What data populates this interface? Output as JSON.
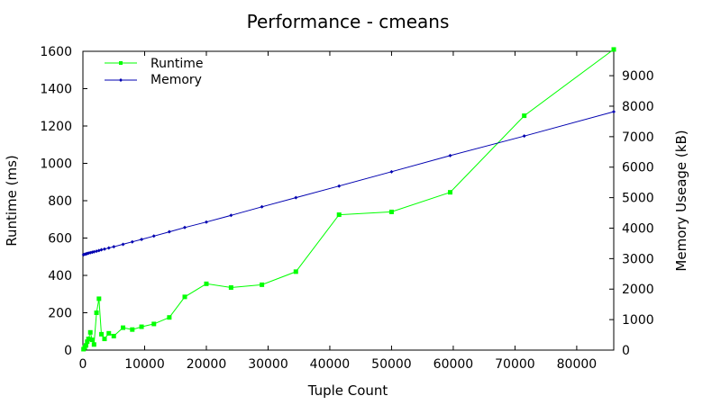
{
  "chart_data": {
    "type": "line",
    "title": "Performance - cmeans",
    "xlabel": "Tuple Count",
    "ylabel": "Runtime (ms)",
    "y2label": "Memory Useage (kB)",
    "xlim": [
      0,
      86000
    ],
    "ylim": [
      0,
      1600
    ],
    "y2lim": [
      0,
      9800
    ],
    "xticks": [
      0,
      10000,
      20000,
      30000,
      40000,
      50000,
      60000,
      70000,
      80000
    ],
    "yticks": [
      0,
      200,
      400,
      600,
      800,
      1000,
      1200,
      1400,
      1600
    ],
    "y2ticks": [
      0,
      1000,
      2000,
      3000,
      4000,
      5000,
      6000,
      7000,
      8000,
      9000
    ],
    "legend_position": "top-left",
    "grid": false,
    "series": [
      {
        "name": "Runtime",
        "axis": "left",
        "color": "#00ff00",
        "marker": "square",
        "x": [
          100,
          300,
          500,
          700,
          900,
          1200,
          1500,
          1800,
          2200,
          2600,
          3000,
          3500,
          4200,
          5000,
          6500,
          8000,
          9500,
          11500,
          14000,
          16500,
          20000,
          24000,
          29000,
          34500,
          41500,
          50000,
          59500,
          71500,
          86000
        ],
        "y": [
          5,
          15,
          25,
          45,
          60,
          95,
          55,
          30,
          200,
          275,
          85,
          60,
          90,
          75,
          120,
          110,
          125,
          140,
          175,
          285,
          355,
          335,
          350,
          420,
          725,
          740,
          845,
          1255,
          1610
        ]
      },
      {
        "name": "Memory",
        "axis": "right",
        "color": "#0000b0",
        "marker": "diamond",
        "x": [
          100,
          300,
          500,
          700,
          900,
          1200,
          1500,
          1800,
          2200,
          2600,
          3000,
          3500,
          4200,
          5000,
          6500,
          8000,
          9500,
          11500,
          14000,
          16500,
          20000,
          24000,
          29000,
          34500,
          41500,
          50000,
          59500,
          71500,
          86000
        ],
        "y": [
          3130,
          3145,
          3155,
          3165,
          3180,
          3195,
          3210,
          3225,
          3245,
          3265,
          3290,
          3315,
          3350,
          3390,
          3470,
          3550,
          3630,
          3740,
          3880,
          4020,
          4200,
          4420,
          4700,
          5000,
          5380,
          5850,
          6380,
          7020,
          7820
        ]
      }
    ]
  }
}
